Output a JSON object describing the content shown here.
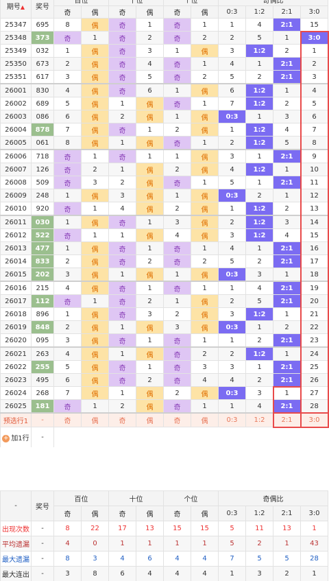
{
  "header": {
    "columns": [
      "期号",
      "奖号"
    ],
    "groups": [
      "百位",
      "十位",
      "个位",
      "奇偶比"
    ],
    "sub": [
      "奇",
      "偶",
      "奇",
      "偶",
      "奇",
      "偶",
      "0:3",
      "1:2",
      "2:1",
      "3:0"
    ]
  },
  "rows": [
    {
      "issue": "25347",
      "number": "695",
      "cells": [
        8,
        "偶",
        "奇",
        1,
        "奇",
        1,
        1,
        4,
        "2:1",
        15
      ]
    },
    {
      "issue": "25348",
      "number": "373",
      "cells": [
        "奇",
        1,
        "奇",
        2,
        "奇",
        2,
        2,
        5,
        1,
        "3:0"
      ]
    },
    {
      "issue": "25349",
      "number": "032",
      "cells": [
        1,
        "偶",
        "奇",
        3,
        1,
        "偶",
        3,
        "1:2",
        2,
        1
      ]
    },
    {
      "issue": "25350",
      "number": "673",
      "cells": [
        2,
        "偶",
        "奇",
        4,
        "奇",
        1,
        4,
        1,
        "2:1",
        2
      ]
    },
    {
      "issue": "25351",
      "number": "617",
      "cells": [
        3,
        "偶",
        "奇",
        5,
        "奇",
        2,
        5,
        2,
        "2:1",
        3
      ]
    },
    {
      "issue": "26001",
      "number": "830",
      "cells": [
        4,
        "偶",
        "奇",
        6,
        1,
        "偶",
        6,
        "1:2",
        1,
        4
      ]
    },
    {
      "issue": "26002",
      "number": "689",
      "cells": [
        5,
        "偶",
        1,
        "偶",
        "奇",
        1,
        7,
        "1:2",
        2,
        5
      ]
    },
    {
      "issue": "26003",
      "number": "086",
      "cells": [
        6,
        "偶",
        2,
        "偶",
        1,
        "偶",
        "0:3",
        1,
        3,
        6
      ]
    },
    {
      "issue": "26004",
      "number": "878",
      "cells": [
        7,
        "偶",
        "奇",
        1,
        2,
        "偶",
        1,
        "1:2",
        4,
        7
      ]
    },
    {
      "issue": "26005",
      "number": "061",
      "cells": [
        8,
        "偶",
        1,
        "偶",
        "奇",
        1,
        2,
        "1:2",
        5,
        8
      ]
    },
    {
      "issue": "26006",
      "number": "718",
      "cells": [
        "奇",
        1,
        "奇",
        1,
        1,
        "偶",
        3,
        1,
        "2:1",
        9
      ]
    },
    {
      "issue": "26007",
      "number": "126",
      "cells": [
        "奇",
        2,
        1,
        "偶",
        2,
        "偶",
        4,
        "1:2",
        1,
        10
      ]
    },
    {
      "issue": "26008",
      "number": "509",
      "cells": [
        "奇",
        3,
        2,
        "偶",
        "奇",
        1,
        5,
        1,
        "2:1",
        11
      ]
    },
    {
      "issue": "26009",
      "number": "248",
      "cells": [
        1,
        "偶",
        3,
        "偶",
        1,
        "偶",
        "0:3",
        2,
        1,
        12
      ]
    },
    {
      "issue": "26010",
      "number": "920",
      "cells": [
        "奇",
        1,
        4,
        "偶",
        2,
        "偶",
        1,
        "1:2",
        2,
        13
      ]
    },
    {
      "issue": "26011",
      "number": "030",
      "cells": [
        1,
        "偶",
        "奇",
        1,
        3,
        "偶",
        2,
        "1:2",
        3,
        14
      ]
    },
    {
      "issue": "26012",
      "number": "522",
      "cells": [
        "奇",
        1,
        1,
        "偶",
        4,
        "偶",
        3,
        "1:2",
        4,
        15
      ]
    },
    {
      "issue": "26013",
      "number": "477",
      "cells": [
        1,
        "偶",
        "奇",
        1,
        "奇",
        1,
        4,
        1,
        "2:1",
        16
      ]
    },
    {
      "issue": "26014",
      "number": "833",
      "cells": [
        2,
        "偶",
        "奇",
        2,
        "奇",
        2,
        5,
        2,
        "2:1",
        17
      ]
    },
    {
      "issue": "26015",
      "number": "202",
      "cells": [
        3,
        "偶",
        1,
        "偶",
        1,
        "偶",
        "0:3",
        3,
        1,
        18
      ]
    },
    {
      "issue": "26016",
      "number": "215",
      "cells": [
        4,
        "偶",
        "奇",
        1,
        "奇",
        1,
        1,
        4,
        "2:1",
        19
      ]
    },
    {
      "issue": "26017",
      "number": "112",
      "cells": [
        "奇",
        1,
        "奇",
        2,
        1,
        "偶",
        2,
        5,
        "2:1",
        20
      ]
    },
    {
      "issue": "26018",
      "number": "896",
      "cells": [
        1,
        "偶",
        "奇",
        3,
        2,
        "偶",
        3,
        "1:2",
        1,
        21
      ]
    },
    {
      "issue": "26019",
      "number": "848",
      "cells": [
        2,
        "偶",
        1,
        "偶",
        3,
        "偶",
        "0:3",
        1,
        2,
        22
      ]
    },
    {
      "issue": "26020",
      "number": "095",
      "cells": [
        3,
        "偶",
        "奇",
        1,
        "奇",
        1,
        1,
        2,
        "2:1",
        23
      ]
    },
    {
      "issue": "26021",
      "number": "263",
      "cells": [
        4,
        "偶",
        1,
        "偶",
        "奇",
        2,
        2,
        "1:2",
        1,
        24
      ]
    },
    {
      "issue": "26022",
      "number": "255",
      "cells": [
        5,
        "偶",
        "奇",
        1,
        "奇",
        3,
        3,
        1,
        "2:1",
        25
      ]
    },
    {
      "issue": "26023",
      "number": "495",
      "cells": [
        6,
        "偶",
        "奇",
        2,
        "奇",
        4,
        4,
        2,
        "2:1",
        26
      ]
    },
    {
      "issue": "26024",
      "number": "268",
      "cells": [
        7,
        "偶",
        1,
        "偶",
        2,
        "偶",
        "0:3",
        3,
        1,
        27
      ]
    },
    {
      "issue": "26025",
      "number": "181",
      "cells": [
        "奇",
        1,
        2,
        "偶",
        "奇",
        1,
        1,
        4,
        "2:1",
        28
      ]
    }
  ],
  "preselect": {
    "label": "预选行1",
    "number": "-",
    "cells": [
      "奇",
      "偶",
      "奇",
      "偶",
      "奇",
      "偶",
      "0:3",
      "1:2",
      "2:1",
      "3:0"
    ]
  },
  "add_row": {
    "label": "加1行",
    "number": "-"
  },
  "stats": {
    "corner": "-",
    "columns": [
      "奖号"
    ],
    "groups": [
      "百位",
      "十位",
      "个位",
      "奇偶比"
    ],
    "sub": [
      "奇",
      "偶",
      "奇",
      "偶",
      "奇",
      "偶",
      "0:3",
      "1:2",
      "2:1",
      "3:0"
    ],
    "rows": [
      {
        "label": "出现次数",
        "number": "-",
        "values": [
          8,
          22,
          17,
          13,
          15,
          15,
          5,
          11,
          13,
          1
        ]
      },
      {
        "label": "平均遗漏",
        "number": "-",
        "values": [
          4,
          0,
          1,
          1,
          1,
          1,
          5,
          2,
          1,
          43
        ]
      },
      {
        "label": "最大遗漏",
        "number": "-",
        "values": [
          8,
          3,
          4,
          6,
          4,
          4,
          7,
          5,
          5,
          28
        ]
      },
      {
        "label": "最大连出",
        "number": "-",
        "values": [
          3,
          8,
          6,
          4,
          4,
          4,
          1,
          3,
          2,
          1
        ]
      }
    ]
  }
}
